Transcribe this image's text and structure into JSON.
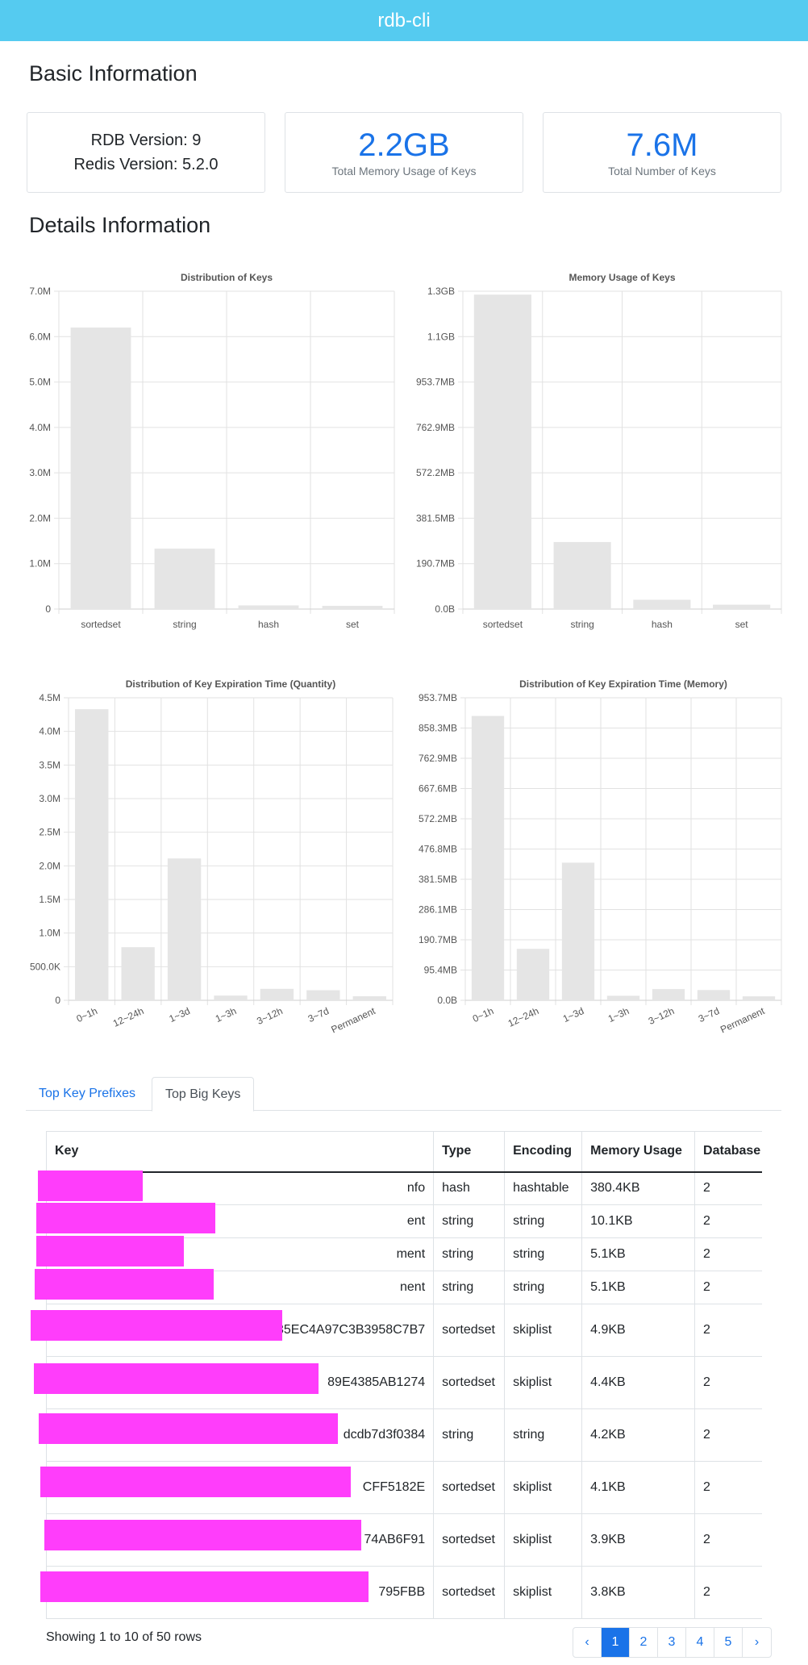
{
  "app": {
    "title": "rdb-cli"
  },
  "basic": {
    "heading": "Basic Information",
    "rdb_version_label": "RDB Version:",
    "rdb_version": "9",
    "redis_version_label": "Redis Version:",
    "redis_version": "5.2.0",
    "memory_value": "2.2GB",
    "memory_caption": "Total Memory Usage of Keys",
    "keys_value": "7.6M",
    "keys_caption": "Total Number of Keys"
  },
  "details": {
    "heading": "Details Information"
  },
  "colors": {
    "accent": "#1a73e8",
    "header": "#55cbf0",
    "bar": "#e5e5e5",
    "redaction": "#ff3dfb"
  },
  "chart_data": [
    {
      "type": "bar",
      "title": "Distribution of Keys",
      "categories": [
        "sortedset",
        "string",
        "hash",
        "set"
      ],
      "values": [
        6.2,
        1.33,
        0.08,
        0.07
      ],
      "yticks": [
        "0",
        "1.0M",
        "2.0M",
        "3.0M",
        "4.0M",
        "5.0M",
        "6.0M",
        "7.0M"
      ],
      "ylim": [
        0,
        7
      ],
      "grid": true
    },
    {
      "type": "bar",
      "title": "Memory Usage of Keys",
      "categories": [
        "sortedset",
        "string",
        "hash",
        "set"
      ],
      "values": [
        1.29,
        0.275,
        0.038,
        0.018
      ],
      "yticks": [
        "0.0B",
        "190.7MB",
        "381.5MB",
        "572.2MB",
        "762.9MB",
        "953.7MB",
        "1.1GB",
        "1.3GB"
      ],
      "ylim": [
        0,
        1.304
      ],
      "grid": true
    },
    {
      "type": "bar",
      "title": "Distribution of Key Expiration Time (Quantity)",
      "categories": [
        "0~1h",
        "12~24h",
        "1~3d",
        "1~3h",
        "3~12h",
        "3~7d",
        "Permanent"
      ],
      "values": [
        4.33,
        0.79,
        2.11,
        0.07,
        0.17,
        0.15,
        0.06
      ],
      "yticks": [
        "0",
        "500.0K",
        "1.0M",
        "1.5M",
        "2.0M",
        "2.5M",
        "3.0M",
        "3.5M",
        "4.0M",
        "4.5M"
      ],
      "ylim": [
        0,
        4.5
      ],
      "grid": true
    },
    {
      "type": "bar",
      "title": "Distribution of Key Expiration Time (Memory)",
      "categories": [
        "0~1h",
        "12~24h",
        "1~3d",
        "1~3h",
        "3~12h",
        "3~7d",
        "Permanent"
      ],
      "values": [
        0.94,
        0.17,
        0.455,
        0.015,
        0.037,
        0.034,
        0.013
      ],
      "yticks": [
        "0.0B",
        "95.4MB",
        "190.7MB",
        "286.1MB",
        "381.5MB",
        "476.8MB",
        "572.2MB",
        "667.6MB",
        "762.9MB",
        "858.3MB",
        "953.7MB"
      ],
      "ylim": [
        0,
        1.0
      ],
      "grid": true
    }
  ],
  "tabs": [
    {
      "label": "Top Key Prefixes",
      "active": false
    },
    {
      "label": "Top Big Keys",
      "active": true
    }
  ],
  "table": {
    "headers": [
      "Key",
      "Type",
      "Encoding",
      "Memory Usage",
      "Database"
    ],
    "rows": [
      {
        "key": "nfo",
        "type": "hash",
        "encoding": "hashtable",
        "memory": "380.4KB",
        "db": "2"
      },
      {
        "key": "ent",
        "type": "string",
        "encoding": "string",
        "memory": "10.1KB",
        "db": "2"
      },
      {
        "key": "ment",
        "type": "string",
        "encoding": "string",
        "memory": "5.1KB",
        "db": "2"
      },
      {
        "key": "nent",
        "type": "string",
        "encoding": "string",
        "memory": "5.1KB",
        "db": "2"
      },
      {
        "key": "35EC4A97C3B3958C7B7",
        "type": "sortedset",
        "encoding": "skiplist",
        "memory": "4.9KB",
        "db": "2"
      },
      {
        "key": "89E4385AB1274",
        "type": "sortedset",
        "encoding": "skiplist",
        "memory": "4.4KB",
        "db": "2"
      },
      {
        "key": "dcdb7d3f0384",
        "type": "string",
        "encoding": "string",
        "memory": "4.2KB",
        "db": "2"
      },
      {
        "key": "CFF5182E",
        "type": "sortedset",
        "encoding": "skiplist",
        "memory": "4.1KB",
        "db": "2"
      },
      {
        "key": "74AB6F91",
        "type": "sortedset",
        "encoding": "skiplist",
        "memory": "3.9KB",
        "db": "2"
      },
      {
        "key": "795FBB",
        "type": "sortedset",
        "encoding": "skiplist",
        "memory": "3.8KB",
        "db": "2"
      }
    ]
  },
  "footer": {
    "summary": "Showing 1 to 10 of 50 rows",
    "pages": [
      "‹",
      "1",
      "2",
      "3",
      "4",
      "5",
      "›"
    ],
    "active_page": "1"
  }
}
